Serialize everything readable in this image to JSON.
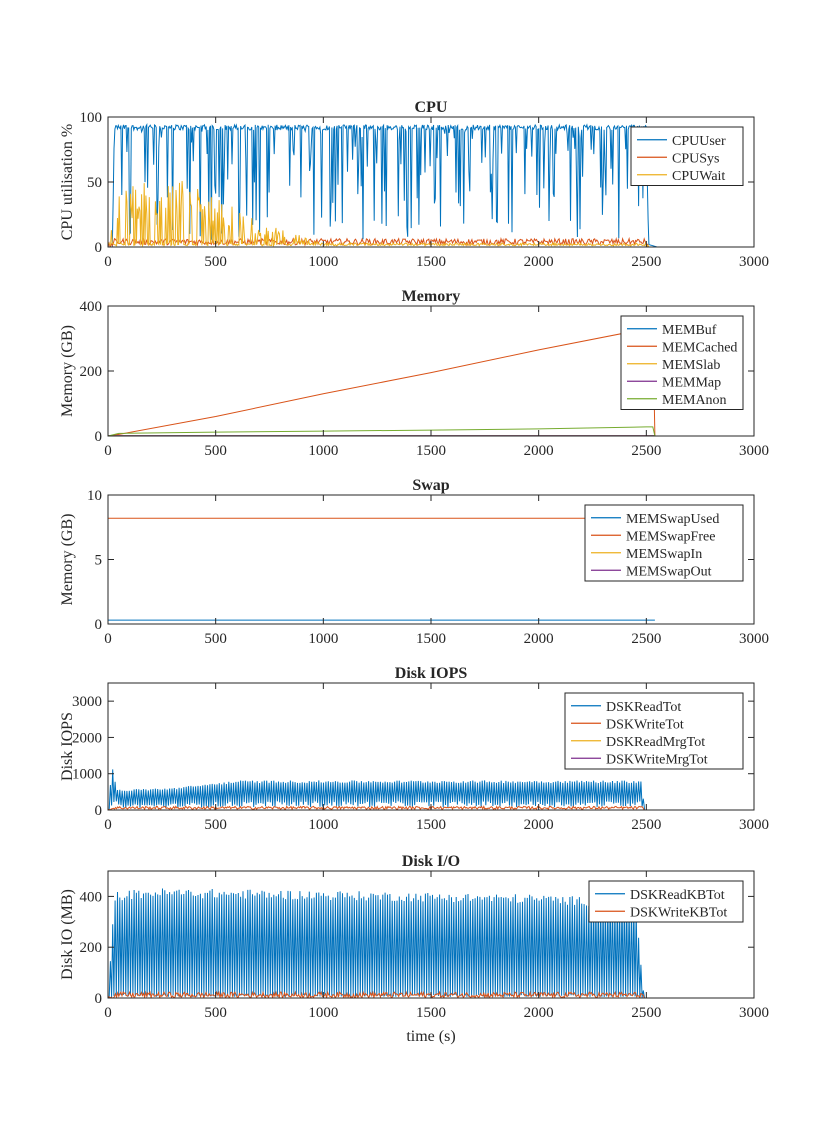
{
  "colors": {
    "blue": "#0072BD",
    "orange": "#D95319",
    "yellow": "#EDB120",
    "purple": "#7E2F8E",
    "green": "#77AC30",
    "axis": "#262626"
  },
  "chart_data": [
    {
      "type": "line",
      "title": "CPU",
      "xlabel": "",
      "ylabel": "CPU utilisation %",
      "xlim": [
        0,
        3000
      ],
      "ylim": [
        0,
        100
      ],
      "xticks": [
        0,
        500,
        1000,
        1500,
        2000,
        2500,
        3000
      ],
      "yticks": [
        0,
        50,
        100
      ],
      "legend_position": "top-right",
      "series": [
        {
          "name": "CPUUser",
          "color": "#0072BD",
          "kind": "spiky",
          "x": [
            0,
            20,
            30,
            2500,
            2510,
            2550
          ],
          "y": [
            0,
            0,
            92,
            92,
            2,
            0
          ],
          "base": 92,
          "low": 30
        },
        {
          "name": "CPUSys",
          "color": "#D95319",
          "kind": "noise",
          "x": [
            0,
            30,
            2500,
            2510,
            2550
          ],
          "y": [
            0,
            4,
            4,
            0,
            0
          ],
          "amp": 3
        },
        {
          "name": "CPUWait",
          "color": "#EDB120",
          "kind": "decay",
          "x": [
            0,
            40,
            250,
            500,
            750,
            1000,
            2500,
            2510
          ],
          "y": [
            0,
            40,
            55,
            35,
            15,
            3,
            2,
            0
          ]
        }
      ]
    },
    {
      "type": "line",
      "title": "Memory",
      "xlabel": "",
      "ylabel": "Memory (GB)",
      "xlim": [
        0,
        3000
      ],
      "ylim": [
        0,
        400
      ],
      "xticks": [
        0,
        500,
        1000,
        1500,
        2000,
        2500,
        3000
      ],
      "yticks": [
        0,
        200,
        400
      ],
      "legend_position": "top-right",
      "series": [
        {
          "name": "MEMBuf",
          "color": "#0072BD",
          "kind": "line",
          "x": [
            0,
            2540
          ],
          "y": [
            0.5,
            0.5
          ]
        },
        {
          "name": "MEMCached",
          "color": "#D95319",
          "kind": "line",
          "x": [
            0,
            50,
            500,
            1000,
            1500,
            2000,
            2500,
            2530,
            2540
          ],
          "y": [
            0,
            5,
            60,
            130,
            195,
            265,
            330,
            335,
            0
          ]
        },
        {
          "name": "MEMSlab",
          "color": "#EDB120",
          "kind": "line",
          "x": [
            0,
            2540
          ],
          "y": [
            1,
            1
          ]
        },
        {
          "name": "MEMMap",
          "color": "#7E2F8E",
          "kind": "line",
          "x": [
            0,
            2540
          ],
          "y": [
            0.5,
            0.5
          ]
        },
        {
          "name": "MEMAnon",
          "color": "#77AC30",
          "kind": "line",
          "x": [
            0,
            50,
            500,
            1000,
            1500,
            2000,
            2500,
            2530,
            2540
          ],
          "y": [
            0,
            8,
            12,
            15,
            18,
            22,
            28,
            28,
            0
          ]
        }
      ]
    },
    {
      "type": "line",
      "title": "Swap",
      "xlabel": "",
      "ylabel": "Memory (GB)",
      "xlim": [
        0,
        3000
      ],
      "ylim": [
        0,
        10
      ],
      "xticks": [
        0,
        500,
        1000,
        1500,
        2000,
        2500,
        3000
      ],
      "yticks": [
        0,
        5,
        10
      ],
      "legend_position": "top-right",
      "series": [
        {
          "name": "MEMSwapUsed",
          "color": "#0072BD",
          "kind": "line",
          "x": [
            0,
            2540
          ],
          "y": [
            0.3,
            0.3
          ]
        },
        {
          "name": "MEMSwapFree",
          "color": "#D95319",
          "kind": "line",
          "x": [
            0,
            2540
          ],
          "y": [
            8.2,
            8.2
          ]
        },
        {
          "name": "MEMSwapIn",
          "color": "#EDB120",
          "kind": "line",
          "x": [
            0,
            2540
          ],
          "y": [
            0,
            0
          ]
        },
        {
          "name": "MEMSwapOut",
          "color": "#7E2F8E",
          "kind": "line",
          "x": [
            0,
            2540
          ],
          "y": [
            0,
            0
          ]
        }
      ]
    },
    {
      "type": "line",
      "title": "Disk IOPS",
      "xlabel": "",
      "ylabel": "Disk IOPS",
      "xlim": [
        0,
        3000
      ],
      "ylim": [
        0,
        3500
      ],
      "xticks": [
        0,
        500,
        1000,
        1500,
        2000,
        2500,
        3000
      ],
      "yticks": [
        0,
        1000,
        2000,
        3000
      ],
      "legend_position": "top-right",
      "series": [
        {
          "name": "DSKReadTot",
          "color": "#0072BD",
          "kind": "oscillate",
          "x": [
            0,
            20,
            40,
            300,
            600,
            2480,
            2490
          ],
          "y": [
            0,
            1250,
            550,
            600,
            800,
            800,
            0
          ],
          "lowfrac": 0.2
        },
        {
          "name": "DSKWriteTot",
          "color": "#D95319",
          "kind": "noise",
          "x": [
            0,
            30,
            2480,
            2490
          ],
          "y": [
            0,
            60,
            60,
            0
          ],
          "amp": 50
        },
        {
          "name": "DSKReadMrgTot",
          "color": "#EDB120",
          "kind": "line",
          "x": [
            0,
            2490
          ],
          "y": [
            0,
            0
          ]
        },
        {
          "name": "DSKWriteMrgTot",
          "color": "#7E2F8E",
          "kind": "line",
          "x": [
            0,
            2490
          ],
          "y": [
            0,
            0
          ]
        }
      ]
    },
    {
      "type": "line",
      "title": "Disk I/O",
      "xlabel": "time (s)",
      "ylabel": "Disk IO (MB)",
      "xlim": [
        0,
        3000
      ],
      "ylim": [
        0,
        500
      ],
      "xticks": [
        0,
        500,
        1000,
        1500,
        2000,
        2500,
        3000
      ],
      "yticks": [
        0,
        200,
        400
      ],
      "legend_position": "top-right",
      "series": [
        {
          "name": "DSKReadKBTot",
          "color": "#0072BD",
          "kind": "oscillate",
          "x": [
            0,
            30,
            200,
            1000,
            2000,
            2450,
            2480,
            2490
          ],
          "y": [
            0,
            410,
            425,
            415,
            400,
            380,
            80,
            0
          ],
          "lowfrac": 0.02
        },
        {
          "name": "DSKWriteKBTot",
          "color": "#D95319",
          "kind": "noise",
          "x": [
            0,
            30,
            2480,
            2490
          ],
          "y": [
            0,
            12,
            12,
            0
          ],
          "amp": 14
        }
      ]
    }
  ]
}
